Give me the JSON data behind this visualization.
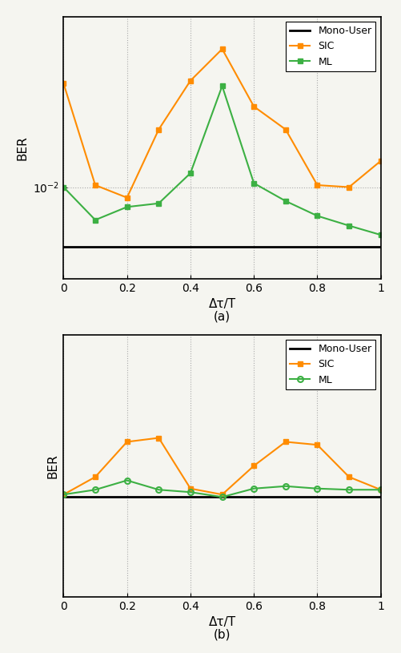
{
  "x": [
    0,
    0.1,
    0.2,
    0.3,
    0.4,
    0.5,
    0.6,
    0.7,
    0.8,
    0.9,
    1.0
  ],
  "subplot_a": {
    "SIC": [
      0.0282,
      0.0102,
      0.009,
      0.0178,
      0.029,
      0.0398,
      0.0224,
      0.0178,
      0.0102,
      0.01,
      0.013
    ],
    "ML": [
      0.01,
      0.0072,
      0.0082,
      0.0085,
      0.0115,
      0.0275,
      0.0104,
      0.0087,
      0.0075,
      0.0068,
      0.0062
    ],
    "MonoUser": 0.0055,
    "ylim": [
      0.004,
      0.055
    ],
    "yticks": [
      -1.4,
      -1.5,
      -1.0
    ],
    "title": "(a)"
  },
  "subplot_b": {
    "SIC": [
      0.022,
      0.0235,
      0.0268,
      0.0272,
      0.0225,
      0.022,
      0.0245,
      0.0268,
      0.0265,
      0.0235,
      0.0224
    ],
    "ML": [
      0.022,
      0.0224,
      0.0232,
      0.0224,
      0.0222,
      0.0218,
      0.0225,
      0.0227,
      0.0225,
      0.0224,
      0.0224
    ],
    "MonoUser": 0.0218,
    "ylim": [
      0.015,
      0.04
    ],
    "title": "(b)"
  },
  "colors": {
    "MonoUser": "#000000",
    "SIC": "#FF8C00",
    "ML_a": "#3CB043",
    "ML_b": "#3CB043"
  },
  "xlabel": "Δτ/T",
  "ylabel": "BER",
  "background": "#f5f5f0"
}
